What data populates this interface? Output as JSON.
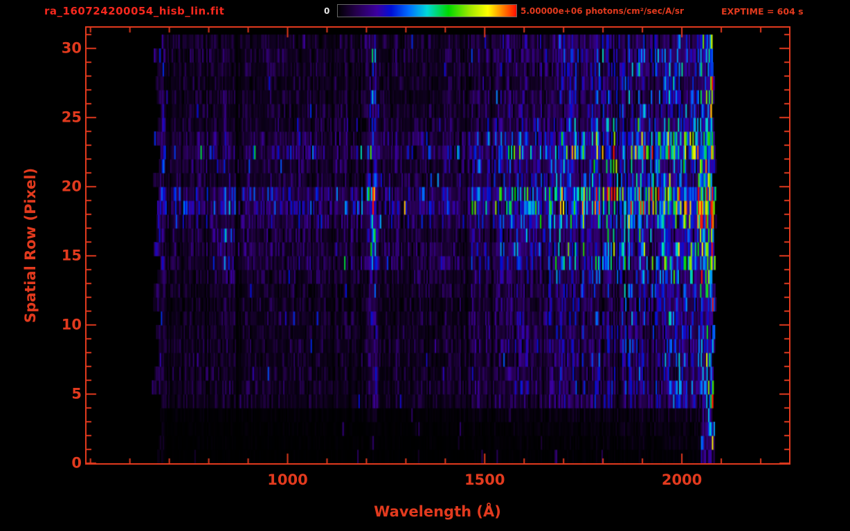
{
  "header": {
    "title": "ra_160724200054_hisb_lin.fit",
    "colorbar_min_label": "0",
    "colorbar_max_label": "5.00000e+06 photons/cm²/sec/A/sr",
    "exptime_label": "EXPTIME = 604 s"
  },
  "axes": {
    "xlabel": "Wavelength (Å)",
    "ylabel": "Spatial Row (Pixel)"
  },
  "colors": {
    "background": "#000000",
    "axis_red": "#e23a1e",
    "title_red": "#f5281e",
    "label_white": "#e6e6e6"
  },
  "chart_data": {
    "type": "heatmap",
    "title": "ra_160724200054_hisb_lin.fit",
    "xlabel": "Wavelength (Å)",
    "ylabel": "Spatial Row (Pixel)",
    "xlim": [
      490,
      2272
    ],
    "ylim": [
      0,
      31.5
    ],
    "xticks": [
      1000,
      1500,
      2000
    ],
    "yticks": [
      0,
      5,
      10,
      15,
      20,
      25,
      30
    ],
    "x_minor_step": 100,
    "y_minor_step": 1,
    "colorbar": {
      "min_value": 0,
      "max_value": 5000000,
      "units": "photons/cm²/sec/A/sr",
      "exptime_seconds": 604
    },
    "data_extent": {
      "wavelength_min": 668,
      "wavelength_max": 2080,
      "row_min": 0,
      "row_max": 30
    },
    "colormap_stops": [
      [
        0.0,
        "#000000"
      ],
      [
        0.1,
        "#24004a"
      ],
      [
        0.22,
        "#3c00a0"
      ],
      [
        0.3,
        "#0010d8"
      ],
      [
        0.4,
        "#0070ff"
      ],
      [
        0.5,
        "#00d8d8"
      ],
      [
        0.62,
        "#00d800"
      ],
      [
        0.74,
        "#a0e800"
      ],
      [
        0.84,
        "#ffff00"
      ],
      [
        0.93,
        "#ff7800"
      ],
      [
        1.0,
        "#ff1000"
      ]
    ],
    "features": {
      "row_profile": [
        0.02,
        0.03,
        0.04,
        0.06,
        0.3,
        0.33,
        0.3,
        0.3,
        0.33,
        0.3,
        0.34,
        0.3,
        0.34,
        0.4,
        0.55,
        0.58,
        0.5,
        0.7,
        1.0,
        0.95,
        0.48,
        0.52,
        0.85,
        0.62,
        0.42,
        0.36,
        0.34,
        0.3,
        0.34,
        0.4,
        0.36
      ],
      "continuum": {
        "base": 0.25,
        "peak": 1.0,
        "start": 1350,
        "end": 2050
      },
      "emission_lines": [
        {
          "name": "Lyman-alpha",
          "wavelength": 1216,
          "width": 9,
          "strength": 0.7
        },
        {
          "name": "diffuse-blob",
          "wavelength": 850,
          "width": 25,
          "strength": 0.35,
          "rows": [
            13,
            16
          ]
        }
      ],
      "edge_band": {
        "start": 2046,
        "end": 2082,
        "boost": 0.5
      },
      "left_edge": {
        "width": 18,
        "boost": 1.6
      }
    }
  }
}
